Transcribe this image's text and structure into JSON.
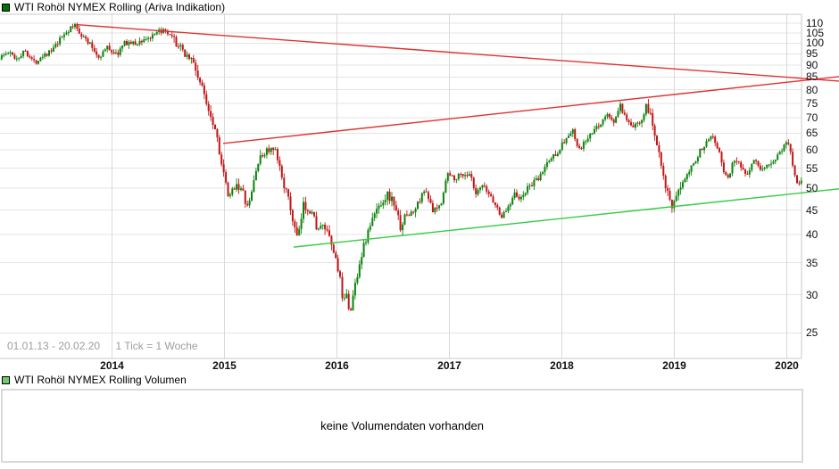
{
  "chart_data": [
    {
      "type": "candlestick",
      "title": "WTI Rohöl NYMEX Rolling (Ariva Indikation)",
      "legend_color": "#007300",
      "period_label": "01.01.13 - 20.02.20",
      "interval_label": "1 Tick = 1 Woche",
      "interval": "1 week",
      "y_scale": "log",
      "y_ticks": [
        110,
        105,
        100,
        95,
        90,
        85,
        80,
        75,
        70,
        65,
        60,
        55,
        50,
        45,
        40,
        35,
        30,
        25
      ],
      "x_ticks": [
        "2014",
        "2015",
        "2016",
        "2017",
        "2018",
        "2019",
        "2020"
      ],
      "ylim": [
        22,
        115
      ],
      "x_range": [
        2013.0,
        2020.14
      ],
      "colors": {
        "up": "#0b830b",
        "down": "#c21515",
        "grid_h": "#e4e4e4",
        "grid_v": "#d9d9d9",
        "border": "#c8c8c8"
      },
      "weekly_close_anchors": [
        [
          2013.0,
          93.5
        ],
        [
          2013.08,
          95.5
        ],
        [
          2013.15,
          93
        ],
        [
          2013.23,
          96.5
        ],
        [
          2013.31,
          91
        ],
        [
          2013.38,
          94.5
        ],
        [
          2013.46,
          96
        ],
        [
          2013.52,
          100
        ],
        [
          2013.58,
          105
        ],
        [
          2013.63,
          107
        ],
        [
          2013.67,
          109
        ],
        [
          2013.73,
          104
        ],
        [
          2013.81,
          99
        ],
        [
          2013.88,
          93.5
        ],
        [
          2013.96,
          98
        ],
        [
          2014.04,
          94.5
        ],
        [
          2014.12,
          100.5
        ],
        [
          2014.21,
          99.5
        ],
        [
          2014.29,
          102
        ],
        [
          2014.37,
          103
        ],
        [
          2014.44,
          106.5
        ],
        [
          2014.54,
          102
        ],
        [
          2014.62,
          96.5
        ],
        [
          2014.71,
          92.5
        ],
        [
          2014.79,
          82
        ],
        [
          2014.87,
          72
        ],
        [
          2014.93,
          65
        ],
        [
          2014.98,
          55
        ],
        [
          2015.04,
          47
        ],
        [
          2015.1,
          51.5
        ],
        [
          2015.16,
          49
        ],
        [
          2015.21,
          45
        ],
        [
          2015.29,
          56
        ],
        [
          2015.37,
          60
        ],
        [
          2015.45,
          59.5
        ],
        [
          2015.52,
          52
        ],
        [
          2015.58,
          46
        ],
        [
          2015.63,
          40.5
        ],
        [
          2015.655,
          39
        ],
        [
          2015.7,
          46
        ],
        [
          2015.77,
          45
        ],
        [
          2015.83,
          41
        ],
        [
          2015.89,
          41.5
        ],
        [
          2015.96,
          37.5
        ],
        [
          2016.02,
          33.5
        ],
        [
          2016.055,
          28
        ],
        [
          2016.09,
          31
        ],
        [
          2016.115,
          26.9
        ],
        [
          2016.16,
          31.5
        ],
        [
          2016.22,
          36.5
        ],
        [
          2016.29,
          41.5
        ],
        [
          2016.37,
          46
        ],
        [
          2016.45,
          48.5
        ],
        [
          2016.52,
          46
        ],
        [
          2016.56,
          41.5
        ],
        [
          2016.62,
          44
        ],
        [
          2016.68,
          44.5
        ],
        [
          2016.74,
          47.5
        ],
        [
          2016.79,
          50
        ],
        [
          2016.85,
          44.5
        ],
        [
          2016.92,
          46
        ],
        [
          2016.98,
          53.5
        ],
        [
          2017.04,
          52.5
        ],
        [
          2017.12,
          53.5
        ],
        [
          2017.19,
          53
        ],
        [
          2017.23,
          48
        ],
        [
          2017.29,
          50.5
        ],
        [
          2017.37,
          48
        ],
        [
          2017.42,
          45.5
        ],
        [
          2017.47,
          43.5
        ],
        [
          2017.54,
          46.5
        ],
        [
          2017.58,
          49.5
        ],
        [
          2017.62,
          47
        ],
        [
          2017.71,
          50.5
        ],
        [
          2017.79,
          52
        ],
        [
          2017.87,
          56.5
        ],
        [
          2017.96,
          59.5
        ],
        [
          2018.04,
          63.5
        ],
        [
          2018.1,
          65.5
        ],
        [
          2018.15,
          59.5
        ],
        [
          2018.21,
          62.5
        ],
        [
          2018.27,
          65
        ],
        [
          2018.33,
          67.5
        ],
        [
          2018.4,
          71
        ],
        [
          2018.46,
          68.5
        ],
        [
          2018.52,
          74
        ],
        [
          2018.58,
          68
        ],
        [
          2018.65,
          67
        ],
        [
          2018.71,
          70
        ],
        [
          2018.755,
          75
        ],
        [
          2018.81,
          67
        ],
        [
          2018.87,
          59
        ],
        [
          2018.92,
          51
        ],
        [
          2018.98,
          45
        ],
        [
          2019.02,
          47.5
        ],
        [
          2019.08,
          52.5
        ],
        [
          2019.15,
          55.5
        ],
        [
          2019.21,
          58.5
        ],
        [
          2019.29,
          63
        ],
        [
          2019.33,
          65
        ],
        [
          2019.38,
          61.5
        ],
        [
          2019.44,
          54
        ],
        [
          2019.48,
          52.5
        ],
        [
          2019.54,
          58
        ],
        [
          2019.6,
          55
        ],
        [
          2019.65,
          53.5
        ],
        [
          2019.71,
          58
        ],
        [
          2019.77,
          53.5
        ],
        [
          2019.83,
          56
        ],
        [
          2019.9,
          57.5
        ],
        [
          2019.96,
          60.5
        ],
        [
          2020.01,
          62.5
        ],
        [
          2020.04,
          58.5
        ],
        [
          2020.07,
          53.5
        ],
        [
          2020.1,
          50.8
        ],
        [
          2020.13,
          52.5
        ],
        [
          2020.14,
          53.3
        ]
      ],
      "trendlines": [
        {
          "name": "descending-resistance",
          "color": "#e03232",
          "from": [
            2013.694,
            109.2
          ],
          "to": [
            2020.464,
            83.4
          ]
        },
        {
          "name": "ascending-resistance",
          "color": "#e03232",
          "from": [
            2014.988,
            61.9
          ],
          "to": [
            2020.464,
            85.2
          ]
        },
        {
          "name": "ascending-support",
          "color": "#33cc44",
          "from": [
            2015.615,
            37.7
          ],
          "to": [
            2020.464,
            49.8
          ]
        }
      ]
    },
    {
      "type": "none",
      "title": "WTI Rohöl NYMEX Rolling Volumen",
      "legend_color": "#6ecc6e",
      "message": "keine Volumendaten vorhanden"
    }
  ]
}
